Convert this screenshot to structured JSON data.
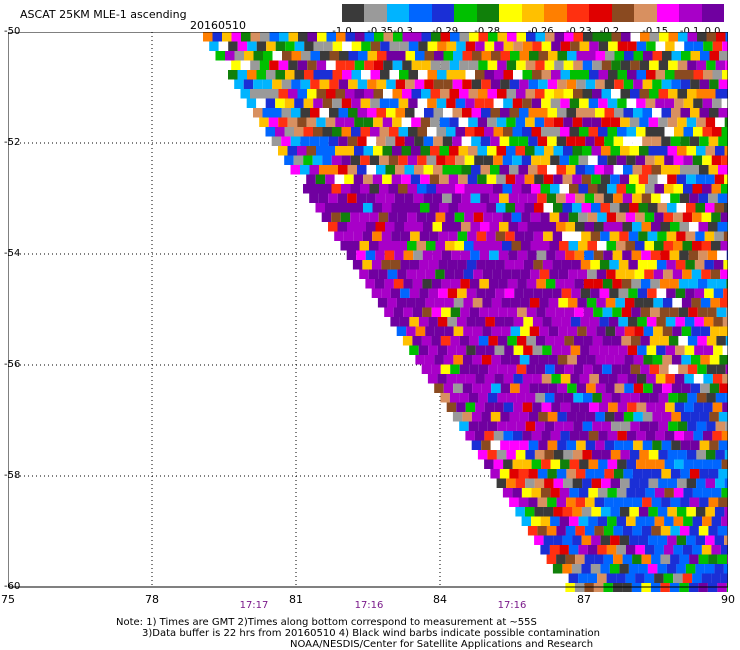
{
  "header": {
    "title": "ASCAT 25KM MLE-1 ascending",
    "date": "20160510"
  },
  "colorbar": {
    "colors": [
      "#3a3a3a",
      "#9a9a9a",
      "#00b4ff",
      "#0066ff",
      "#1a2fd6",
      "#00c000",
      "#10800a",
      "#ffff00",
      "#ffc000",
      "#ff7f00",
      "#ff3010",
      "#e00000",
      "#8a4a20",
      "#d89060",
      "#ff00ff",
      "#a800c8",
      "#7000a0"
    ],
    "labels": [
      "-1.0",
      "-0.35",
      "-0.3",
      "-0.29",
      "-0.28",
      "-0.26",
      "-0.23",
      "-0.2",
      "-0.15",
      "-0.1",
      "0.0"
    ]
  },
  "map": {
    "lat_labels": [
      "-50",
      "-52",
      "-54",
      "-56",
      "-58",
      "-60"
    ],
    "lon_labels": [
      "75",
      "78",
      "81",
      "84",
      "87",
      "90"
    ],
    "time_labels": [
      "17:17",
      "17:16",
      "17:16"
    ]
  },
  "footer": {
    "line1": "Note: 1) Times are GMT 2)Times along bottom correspond to measurement at ~55S",
    "line2": "3)Data buffer is 22 hrs from 20160510 4) Black wind barbs indicate possible contamination",
    "line3": "NOAA/NESDIS/Center for Satellite Applications and Research"
  }
}
